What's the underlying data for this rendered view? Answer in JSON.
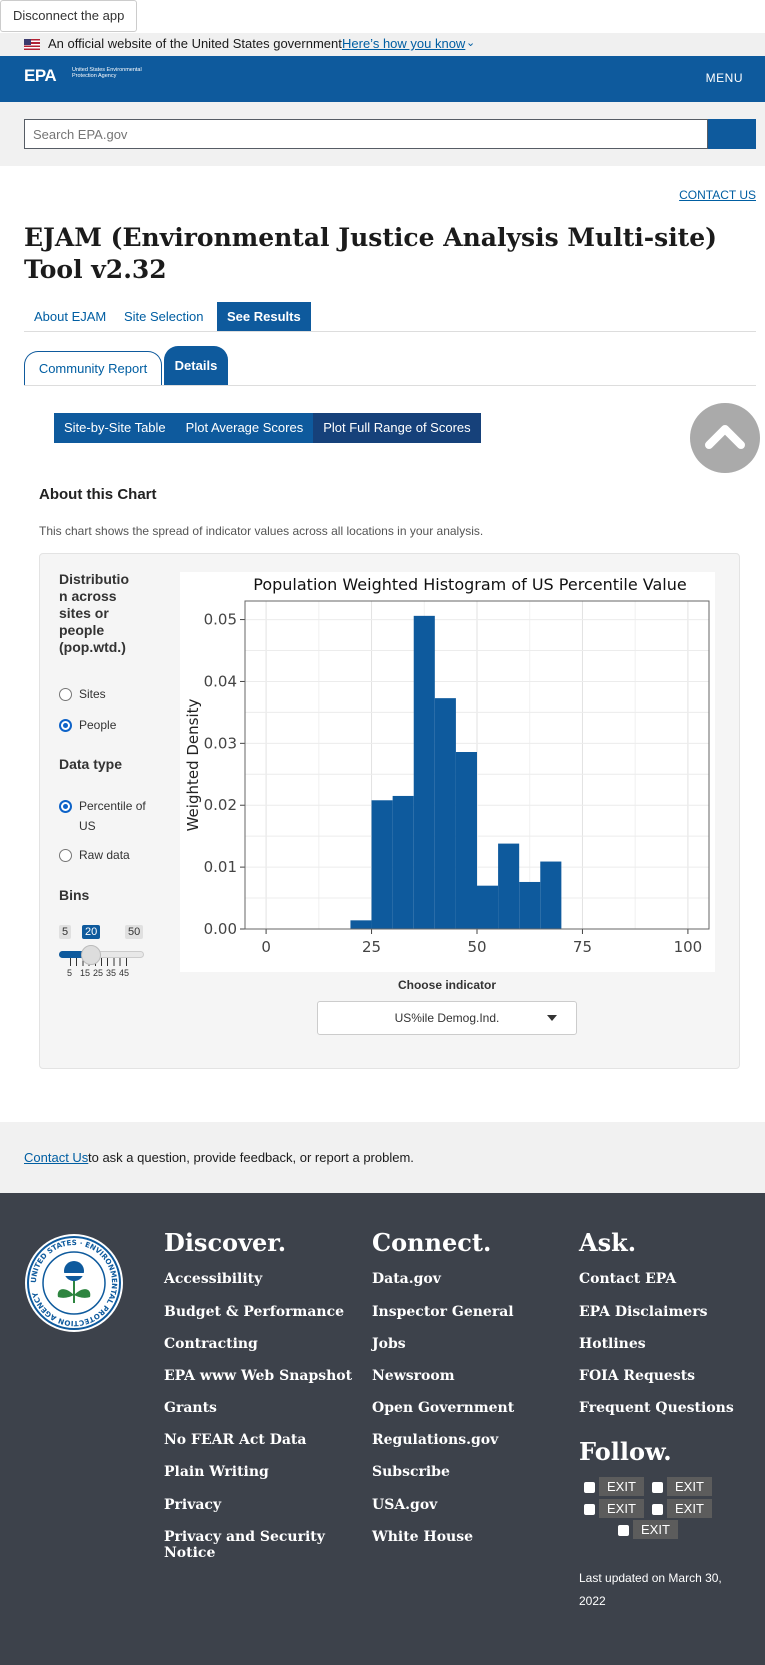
{
  "disconnect_label": "Disconnect the app",
  "gov_banner": {
    "text": "An official website of the United States government",
    "link": "Here’s how you know"
  },
  "header": {
    "logo": "EPA",
    "logo_sub": "United States Environmental Protection Agency",
    "menu": "MENU"
  },
  "search": {
    "placeholder": "Search EPA.gov"
  },
  "contact_us_top": "CONTACT US",
  "page_title": "EJAM (Environmental Justice Analysis Multi-site) Tool v2.32",
  "nav_tabs": [
    "About EJAM",
    "Site Selection",
    "See Results"
  ],
  "sub_tabs": [
    "Community Report",
    "Details"
  ],
  "plot_tabs": [
    "Site-by-Site Table",
    "Plot Average Scores",
    "Plot Full Range of Scores"
  ],
  "about": {
    "heading": "About this Chart",
    "text": "This chart shows the spread of indicator values across all locations in your analysis."
  },
  "controls": {
    "distribution_heading": "Distribution across sites or people (pop.wtd.)",
    "distribution_heading_lines": [
      "Distributio",
      "n across",
      "sites or",
      "people",
      "(pop.wtd.)"
    ],
    "distribution_options": [
      "Sites",
      "People"
    ],
    "distribution_selected": "People",
    "datatype_heading": "Data type",
    "datatype_options": [
      "Percentile of US",
      "Raw data"
    ],
    "datatype_selected": "Percentile of US",
    "bins_heading": "Bins",
    "bins": {
      "min": 5,
      "max": 50,
      "value": 20,
      "ticks": [
        "5",
        "15",
        "25",
        "35",
        "45"
      ]
    }
  },
  "chart_data": {
    "type": "bar",
    "title": "Population Weighted Histogram of US Percentile Value",
    "xlabel": "",
    "ylabel": "Weighted Density",
    "xlim": [
      -5,
      105
    ],
    "ylim": [
      0,
      0.053
    ],
    "xticks": [
      0,
      25,
      50,
      75,
      100
    ],
    "yticks": [
      "0.00",
      "0.01",
      "0.02",
      "0.03",
      "0.04",
      "0.05"
    ],
    "grid": true,
    "color": "#0e5a9d",
    "bins": [
      {
        "x0": 20,
        "x1": 25,
        "value": 0.0014
      },
      {
        "x0": 25,
        "x1": 30,
        "value": 0.0208
      },
      {
        "x0": 30,
        "x1": 35,
        "value": 0.0215
      },
      {
        "x0": 35,
        "x1": 40,
        "value": 0.0506
      },
      {
        "x0": 40,
        "x1": 45,
        "value": 0.0373
      },
      {
        "x0": 45,
        "x1": 50,
        "value": 0.0286
      },
      {
        "x0": 50,
        "x1": 55,
        "value": 0.007
      },
      {
        "x0": 55,
        "x1": 60,
        "value": 0.0138
      },
      {
        "x0": 60,
        "x1": 65,
        "value": 0.0076
      },
      {
        "x0": 65,
        "x1": 70,
        "value": 0.0109
      }
    ]
  },
  "choose_indicator": {
    "label": "Choose indicator",
    "value": "US%ile Demog.Ind."
  },
  "contact_band": {
    "link": "Contact Us",
    "text": " to ask a question, provide feedback, or report a problem."
  },
  "footer": {
    "discover": {
      "heading": "Discover.",
      "links": [
        "Accessibility",
        "Budget & Performance",
        "Contracting",
        "EPA www Web Snapshot",
        "Grants",
        "No FEAR Act Data",
        "Plain Writing",
        "Privacy",
        "Privacy and Security Notice"
      ]
    },
    "connect": {
      "heading": "Connect.",
      "links": [
        "Data.gov",
        "Inspector General",
        "Jobs",
        "Newsroom",
        "Open Government",
        "Regulations.gov",
        "Subscribe",
        "USA.gov",
        "White House"
      ]
    },
    "ask": {
      "heading": "Ask.",
      "links": [
        "Contact EPA",
        "EPA Disclaimers",
        "Hotlines",
        "FOIA Requests",
        "Frequent Questions"
      ]
    },
    "follow": {
      "heading": "Follow.",
      "exit_label": "EXIT",
      "icons": [
        "facebook-icon",
        "twitter-icon",
        "youtube-icon",
        "flickr-icon",
        "instagram-icon"
      ]
    },
    "seal_text": "UNITED STATES · ENVIRONMENTAL PROTECTION AGENCY",
    "updated": "Last updated on March 30, 2022"
  }
}
